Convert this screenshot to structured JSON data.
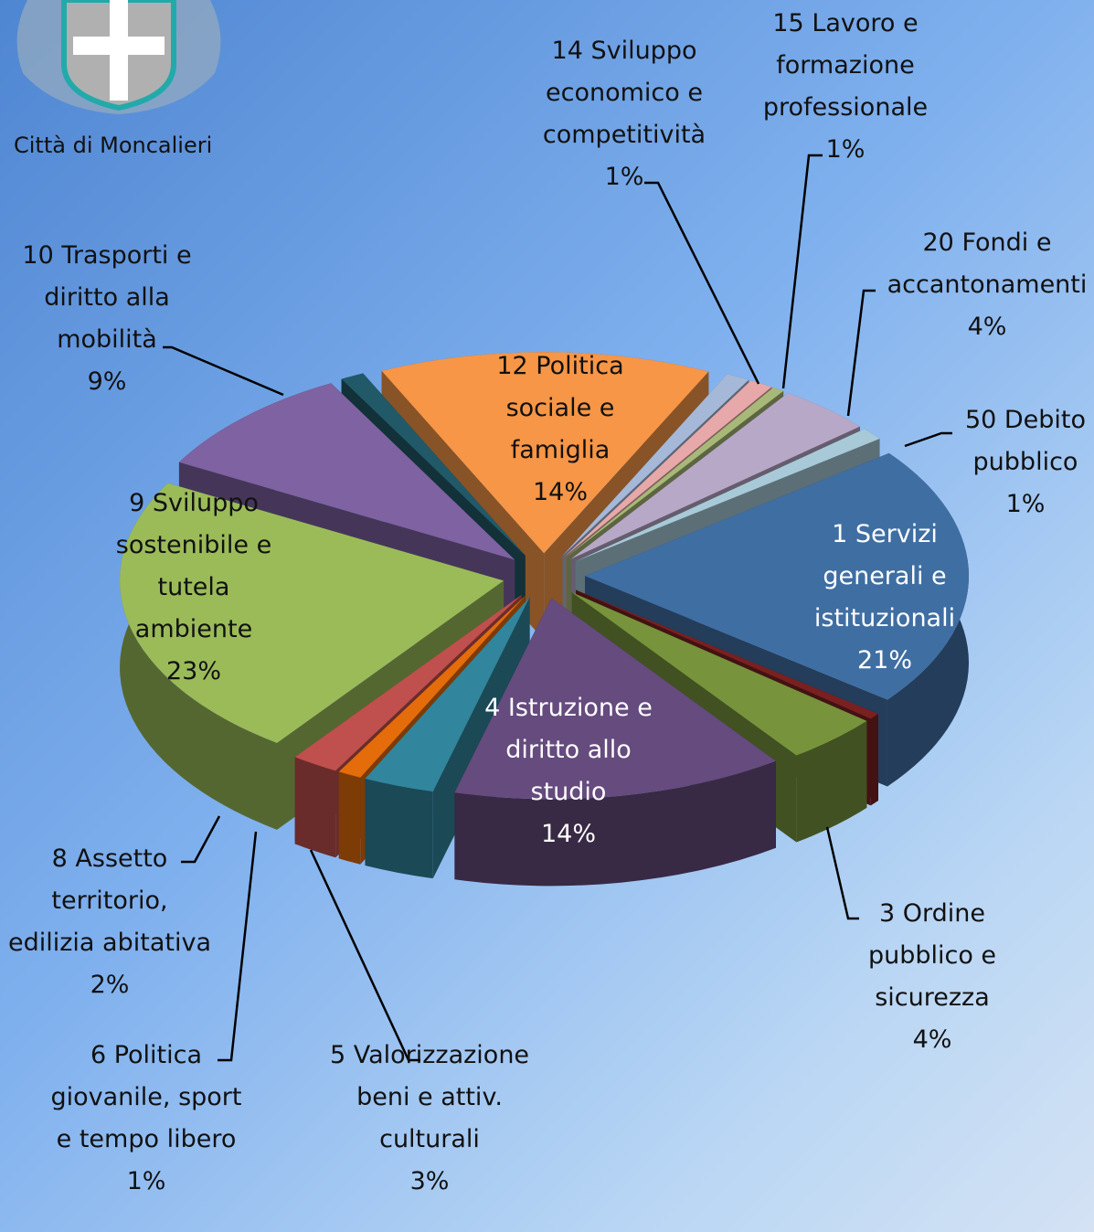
{
  "logo": {
    "caption": "Città di Moncalieri"
  },
  "chart_data": {
    "type": "pie3d",
    "categories": [
      "12 Politica sociale e famiglia",
      "14 Sviluppo economico e competitività",
      "15 Lavoro e formazione professionale",
      null,
      "20 Fondi e accantonamenti",
      "50 Debito pubblico",
      "1 Servizi generali e istituzionali",
      null,
      "3 Ordine pubblico e sicurezza",
      "4 Istruzione e diritto allo studio",
      "5 Valorizzazione beni e attiv. culturali",
      "6  Politica giovanile, sport e tempo libero",
      "8 Assetto territorio, edilizia abitativa",
      "9 Sviluppo sostenibile e tutela ambiente",
      "10 Trasporti e diritto alla mobilità",
      null
    ],
    "values": [
      14,
      1,
      1,
      0.5,
      4,
      1,
      21,
      0.5,
      4,
      14,
      3,
      1,
      2,
      23,
      9,
      1
    ],
    "value_labels": [
      "14%",
      "1%",
      "1%",
      null,
      "4%",
      "1%",
      "21%",
      null,
      "4%",
      "14%",
      "3%",
      "1%",
      "2%",
      "23%",
      "9%",
      null
    ],
    "colors": [
      "#f79646",
      "#a5b8d8",
      "#e6a8a8",
      "#a8b878",
      "#b7a8c8",
      "#a8cad8",
      "#3f6ea3",
      "#7a2020",
      "#77933c",
      "#654b7e",
      "#31859c",
      "#e46c0a",
      "#c0504d",
      "#9bbb59",
      "#7e62a1",
      "#215968"
    ]
  }
}
